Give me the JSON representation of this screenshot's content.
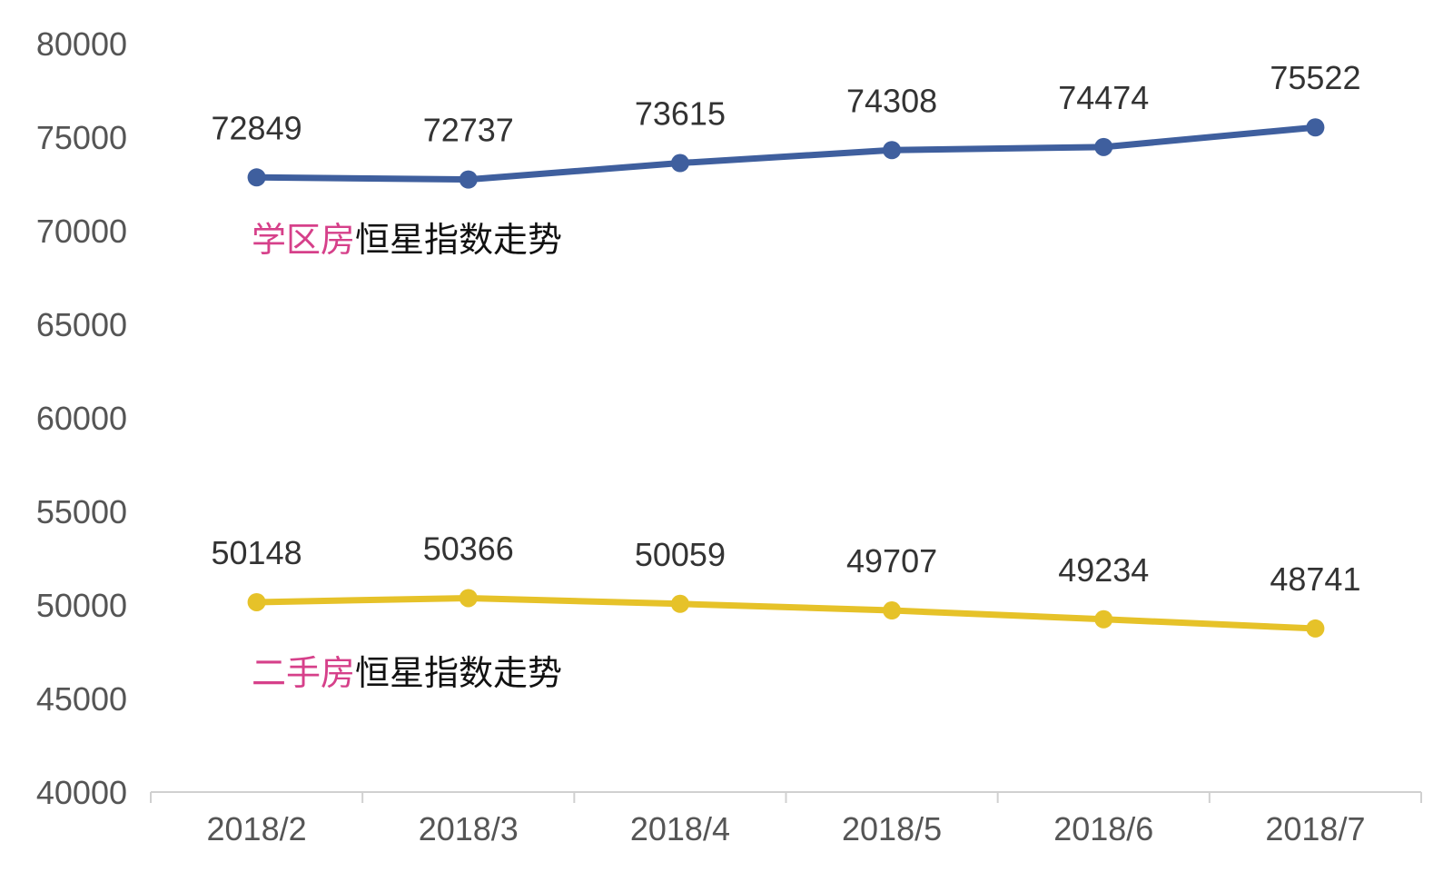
{
  "chart_data": {
    "type": "line",
    "categories": [
      "2018/2",
      "2018/3",
      "2018/4",
      "2018/5",
      "2018/6",
      "2018/7"
    ],
    "ylim": [
      40000,
      80000
    ],
    "y_ticks": [
      40000,
      45000,
      50000,
      55000,
      60000,
      65000,
      70000,
      75000,
      80000
    ],
    "grid": false,
    "data_labels": true,
    "series": [
      {
        "name": "学区房恒星指数走势",
        "name_highlight": "学区房",
        "name_rest": "恒星指数走势",
        "values": [
          72849,
          72737,
          73615,
          74308,
          74474,
          75522
        ],
        "color": "#3f5f9e"
      },
      {
        "name": "二手房恒星指数走势",
        "name_highlight": "二手房",
        "name_rest": "恒星指数走势",
        "values": [
          50148,
          50366,
          50059,
          49707,
          49234,
          48741
        ],
        "color": "#e6c229"
      }
    ],
    "colors": {
      "highlight_text": "#d6408a",
      "label_text": "#333333",
      "axis_text": "#555555",
      "axis_line": "#d0d0d0"
    }
  }
}
